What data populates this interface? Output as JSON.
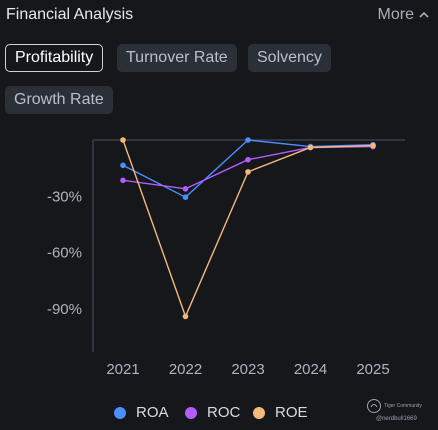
{
  "header": {
    "title": "Financial Analysis",
    "more_label": "More",
    "more_icon": "chevron-up-icon"
  },
  "tabs": [
    {
      "label": "Profitability",
      "active": true
    },
    {
      "label": "Turnover Rate",
      "active": false
    },
    {
      "label": "Solvency",
      "active": false
    },
    {
      "label": "Growth Rate",
      "active": false
    }
  ],
  "chart_data": {
    "type": "line",
    "x": [
      "2021",
      "2022",
      "2023",
      "2024",
      "2025"
    ],
    "y_ticks": [
      "-30%",
      "-60%",
      "-90%"
    ],
    "y_tick_values": [
      -30,
      -60,
      -90
    ],
    "ylim": [
      -113,
      0
    ],
    "grid": false,
    "legend_position": "bottom",
    "series": [
      {
        "name": "ROA",
        "color": "#4c8dff",
        "values": [
          -13.5,
          -30.5,
          0,
          -3.5,
          -2.5
        ]
      },
      {
        "name": "ROC",
        "color": "#b45cff",
        "values": [
          -21.5,
          -26,
          -10.5,
          -4,
          -3.5
        ]
      },
      {
        "name": "ROE",
        "color": "#f4b97a",
        "values": [
          0,
          -94,
          -17,
          -4,
          -3
        ]
      }
    ]
  },
  "watermark": {
    "brand": "Tiger Community",
    "user": "@nerdbull1669"
  }
}
